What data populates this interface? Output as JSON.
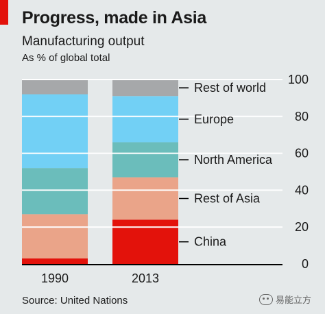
{
  "header": {
    "title": "Progress, made in Asia",
    "subtitle": "Manufacturing output",
    "unit": "As % of global total"
  },
  "source": "Source: United Nations",
  "watermark": "易能立方",
  "colors": {
    "China": "#e3120b",
    "Rest of Asia": "#eaa489",
    "North America": "#6bbdbb",
    "Europe": "#72d0f5",
    "Rest of world": "#a6a8aa",
    "gridline": "#ffffff",
    "axis": "#000000"
  },
  "chart_data": {
    "type": "bar",
    "stacked": true,
    "categories": [
      "1990",
      "2013"
    ],
    "series": [
      {
        "name": "China",
        "values": [
          3,
          24
        ]
      },
      {
        "name": "Rest of Asia",
        "values": [
          24,
          23
        ]
      },
      {
        "name": "North America",
        "values": [
          25,
          19
        ]
      },
      {
        "name": "Europe",
        "values": [
          40,
          25
        ]
      },
      {
        "name": "Rest of world",
        "values": [
          8,
          9
        ]
      }
    ],
    "ylim": [
      0,
      100
    ],
    "yticks": [
      0,
      20,
      40,
      60,
      80,
      100
    ],
    "ytick_labels": [
      "0",
      "20",
      "40",
      "60",
      "80",
      "100"
    ],
    "xlabel": "",
    "ylabel": "",
    "legend_position": "right, labels next to 2013 bar",
    "grid": true
  }
}
